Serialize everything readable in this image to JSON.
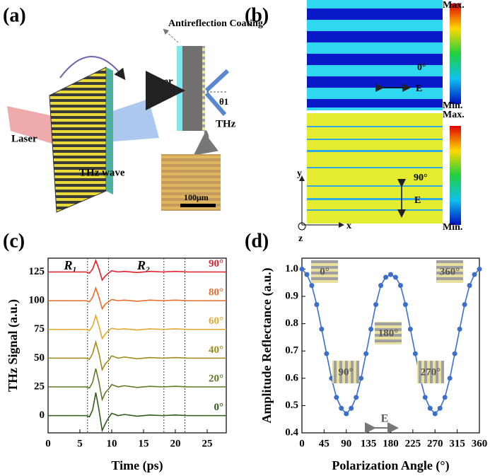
{
  "panel_labels": [
    "(a)",
    "(b)",
    "(c)",
    "(d)"
  ],
  "diagram_a": {
    "coating": "Antireflection Coating",
    "laser_left": "Laser",
    "laser_right": "Laser",
    "thz": "THz",
    "angle": "θ1",
    "thz_wave": "THz wave",
    "scale_bar": "100μm"
  },
  "panel_b": {
    "max_top": "Max.",
    "min_top": "Min.",
    "max_bottom": "Max.",
    "min_bottom": "Min.",
    "angle_top": "0°",
    "e_top": "E",
    "angle_bottom": "90°",
    "e_bottom": "E",
    "axis_y": "y",
    "axis_x": "x",
    "axis_z": "z"
  },
  "chart_data": [
    {
      "type": "line",
      "x_label": "Time (ps)",
      "y_label": "THz Signal (a.u.)",
      "xlim": [
        0,
        28
      ],
      "ylim": [
        -15,
        137
      ],
      "xticks": [
        0,
        5,
        10,
        15,
        20,
        25
      ],
      "yticks": [
        0,
        25,
        50,
        75,
        100,
        125
      ],
      "annotations": [
        "R₁",
        "R₂"
      ],
      "region_lines": [
        6.2,
        9.5,
        18.2,
        21.5
      ],
      "x": [
        0,
        2,
        4,
        5,
        6,
        6.5,
        7,
        7.5,
        8,
        8.5,
        9,
        9.5,
        10,
        10.5,
        11,
        12,
        14,
        16,
        18,
        20,
        22,
        24,
        26,
        28
      ],
      "series": [
        {
          "name": "0°",
          "color": "#2f5a1c",
          "values": [
            0,
            0,
            0,
            0,
            0,
            -1,
            5,
            20,
            5,
            -13,
            -7,
            -2,
            2,
            1,
            0,
            1,
            -0.5,
            0.5,
            0,
            0.5,
            0,
            0,
            0,
            0
          ]
        },
        {
          "name": "20°",
          "color": "#5c7a26",
          "values": [
            25,
            25,
            25,
            25,
            25,
            24,
            29,
            41,
            29,
            14,
            20,
            23,
            27,
            26,
            25,
            26,
            24.5,
            25.5,
            25,
            25.5,
            25,
            25,
            25,
            25
          ]
        },
        {
          "name": "40°",
          "color": "#a08a1a",
          "values": [
            50,
            50,
            50,
            50,
            50,
            49,
            54,
            64,
            54,
            40,
            45,
            48,
            52,
            51,
            50,
            51,
            49.5,
            50.5,
            50,
            50.5,
            50,
            50,
            50,
            50
          ]
        },
        {
          "name": "60°",
          "color": "#e2a92e",
          "values": [
            75,
            75,
            75,
            75,
            75,
            74,
            78,
            87,
            78,
            67,
            71,
            74,
            76,
            75.5,
            75,
            75.5,
            74.5,
            75.5,
            75,
            75.5,
            75,
            75,
            75,
            75
          ]
        },
        {
          "name": "80°",
          "color": "#e46e2c",
          "values": [
            100,
            100,
            100,
            100,
            100,
            99,
            103,
            111,
            103,
            93,
            97,
            99,
            101,
            100.5,
            100,
            100.5,
            99.5,
            100.5,
            100,
            100.5,
            100,
            100,
            100,
            100
          ]
        },
        {
          "name": "90°",
          "color": "#e0202a",
          "values": [
            125,
            125,
            125,
            125,
            125,
            124,
            127.5,
            135,
            127.5,
            118,
            121.5,
            124,
            126,
            125.5,
            125,
            125.5,
            124.5,
            125.5,
            125,
            125.5,
            125,
            125,
            125,
            125
          ]
        }
      ]
    },
    {
      "type": "line",
      "x_label": "Polarization Angle (°)",
      "y_label": "Amplitude Reflectance (a.u.)",
      "xlim": [
        0,
        360
      ],
      "ylim": [
        0.4,
        1.04
      ],
      "xticks": [
        0,
        45,
        90,
        135,
        180,
        225,
        270,
        315,
        360
      ],
      "yticks": [
        {
          "value": 0.4,
          "label": "0.4"
        },
        {
          "value": 0.5,
          "label": "0.5"
        },
        {
          "value": 0.6,
          "label": "0.6"
        },
        {
          "value": 0.7,
          "label": "0.7"
        },
        {
          "value": 0.8,
          "label": "0.8"
        },
        {
          "value": 0.9,
          "label": "0.9"
        },
        {
          "value": 1.0,
          "label": "1.0"
        }
      ],
      "insets": [
        "0°",
        "90°",
        "180°",
        "270°",
        "360°"
      ],
      "e_label": "E",
      "x": [
        0,
        10,
        20,
        30,
        40,
        50,
        60,
        70,
        80,
        90,
        100,
        110,
        120,
        130,
        140,
        150,
        160,
        170,
        180,
        190,
        200,
        210,
        220,
        230,
        240,
        250,
        260,
        270,
        280,
        290,
        300,
        310,
        320,
        330,
        340,
        350,
        360
      ],
      "series": [
        {
          "name": null,
          "color": "#3b6fca",
          "values": [
            1.0,
            0.98,
            0.94,
            0.87,
            0.78,
            0.69,
            0.6,
            0.53,
            0.49,
            0.47,
            0.49,
            0.53,
            0.6,
            0.69,
            0.78,
            0.87,
            0.94,
            0.97,
            0.98,
            0.97,
            0.94,
            0.87,
            0.78,
            0.69,
            0.6,
            0.53,
            0.49,
            0.47,
            0.49,
            0.53,
            0.6,
            0.69,
            0.78,
            0.87,
            0.94,
            0.98,
            1.0
          ]
        }
      ]
    }
  ]
}
